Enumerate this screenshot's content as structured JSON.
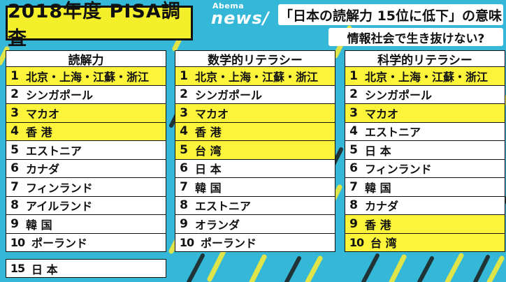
{
  "title": "2018年度 PISA調査",
  "logo": {
    "small": "Abema",
    "big": "news/"
  },
  "headline": "「日本の読解力 15位に低下」の意味",
  "subheadline": "情報社会で生き抜けない?",
  "colors": {
    "background": "#35b8d8",
    "highlight": "#fbf43a",
    "title_bg": "#f3ef2a"
  },
  "rankings": [
    {
      "header": "読解力",
      "rows": [
        {
          "rank": "1",
          "name": "北京・上海・江蘇・浙江"
        },
        {
          "rank": "2",
          "name": "シンガポール"
        },
        {
          "rank": "3",
          "name": "マカオ"
        },
        {
          "rank": "4",
          "name": "香 港"
        },
        {
          "rank": "5",
          "name": "エストニア"
        },
        {
          "rank": "6",
          "name": "カナダ"
        },
        {
          "rank": "7",
          "name": "フィンランド"
        },
        {
          "rank": "8",
          "name": "アイルランド"
        },
        {
          "rank": "9",
          "name": "韓 国"
        },
        {
          "rank": "10",
          "name": "ポーランド"
        }
      ]
    },
    {
      "header": "数学的リテラシー",
      "rows": [
        {
          "rank": "1",
          "name": "北京・上海・江蘇・浙江"
        },
        {
          "rank": "2",
          "name": "シンガポール"
        },
        {
          "rank": "3",
          "name": "マカオ"
        },
        {
          "rank": "4",
          "name": "香 港"
        },
        {
          "rank": "5",
          "name": "台 湾"
        },
        {
          "rank": "6",
          "name": "日 本"
        },
        {
          "rank": "7",
          "name": "韓 国"
        },
        {
          "rank": "8",
          "name": "エストニア"
        },
        {
          "rank": "9",
          "name": "オランダ"
        },
        {
          "rank": "10",
          "name": "ポーランド"
        }
      ]
    },
    {
      "header": "科学的リテラシー",
      "rows": [
        {
          "rank": "1",
          "name": "北京・上海・江蘇・浙江"
        },
        {
          "rank": "2",
          "name": "シンガポール"
        },
        {
          "rank": "3",
          "name": "マカオ"
        },
        {
          "rank": "4",
          "name": "エストニア"
        },
        {
          "rank": "5",
          "name": "日 本"
        },
        {
          "rank": "6",
          "name": "フィンランド"
        },
        {
          "rank": "7",
          "name": "韓 国"
        },
        {
          "rank": "8",
          "name": "カナダ"
        },
        {
          "rank": "9",
          "name": "香 港"
        },
        {
          "rank": "10",
          "name": "台 湾"
        }
      ]
    }
  ],
  "japan_reading": {
    "rank": "15",
    "name": "日 本"
  }
}
